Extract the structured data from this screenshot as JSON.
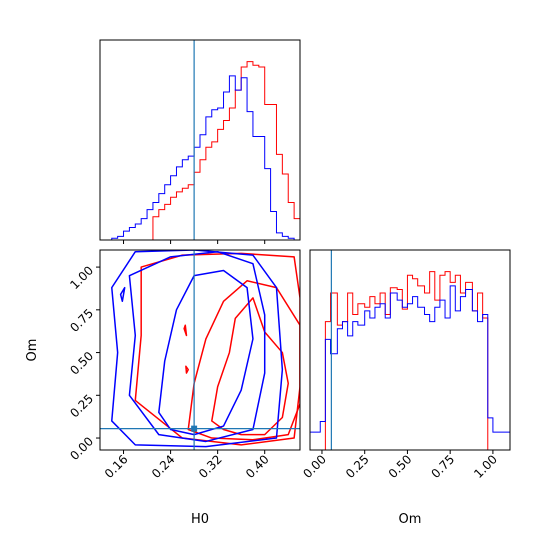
{
  "chart_data": {
    "type": "corner",
    "parameters": [
      "H0",
      "Om"
    ],
    "truth": {
      "H0": 0.28,
      "Om": 0.055
    },
    "colors": {
      "series_a": "#ff0000",
      "series_b": "#0000ff",
      "truth": "#1f77b4"
    },
    "series": [
      {
        "color": "#ff0000"
      },
      {
        "color": "#0000ff"
      }
    ],
    "panels": [
      {
        "id": "hist-H0",
        "type": "step-histogram",
        "xlim": [
          0.12,
          0.46
        ],
        "bins": [
          0.12,
          0.13,
          0.14,
          0.15,
          0.16,
          0.17,
          0.18,
          0.19,
          0.2,
          0.21,
          0.22,
          0.23,
          0.24,
          0.25,
          0.26,
          0.27,
          0.28,
          0.29,
          0.3,
          0.31,
          0.32,
          0.33,
          0.34,
          0.35,
          0.36,
          0.37,
          0.38,
          0.39,
          0.4,
          0.41,
          0.42,
          0.43,
          0.44,
          0.45,
          0.46
        ],
        "series_values": [
          [
            0,
            0,
            0,
            0,
            0,
            0,
            0,
            0,
            0,
            0.13,
            0.17,
            0.2,
            0.24,
            0.27,
            0.29,
            0.31,
            0.38,
            0.45,
            0.52,
            0.55,
            0.62,
            0.67,
            0.74,
            0.84,
            0.97,
            1.0,
            0.98,
            0.97,
            0.76,
            0.76,
            0.48,
            0.37,
            0.21,
            0.12
          ],
          [
            0,
            0,
            0.01,
            0.02,
            0.05,
            0.07,
            0.09,
            0.12,
            0.17,
            0.21,
            0.26,
            0.31,
            0.36,
            0.41,
            0.45,
            0.47,
            0.52,
            0.59,
            0.69,
            0.73,
            0.74,
            0.83,
            0.92,
            0.84,
            0.91,
            0.72,
            0.58,
            0.58,
            0.4,
            0.16,
            0.04,
            0.02,
            0.01,
            0
          ]
        ]
      },
      {
        "id": "hist-Om",
        "type": "step-histogram",
        "xlim": [
          -0.07,
          1.1
        ],
        "bins": [
          -0.07,
          -0.01,
          0.02,
          0.05,
          0.09,
          0.12,
          0.15,
          0.18,
          0.21,
          0.25,
          0.28,
          0.31,
          0.34,
          0.37,
          0.4,
          0.44,
          0.47,
          0.5,
          0.53,
          0.56,
          0.6,
          0.63,
          0.66,
          0.69,
          0.72,
          0.75,
          0.78,
          0.81,
          0.84,
          0.88,
          0.91,
          0.94,
          0.97,
          1.0,
          1.04,
          1.1
        ],
        "series_values": [
          [
            0,
            0,
            0.72,
            0.88,
            0.7,
            0.72,
            0.88,
            0.76,
            0.82,
            0.8,
            0.86,
            0.82,
            0.88,
            0.76,
            0.91,
            0.9,
            0.79,
            0.98,
            0.96,
            0.92,
            0.88,
            1.0,
            0.84,
            0.98,
            1.0,
            0.94,
            0.98,
            0.88,
            0.94,
            0.78,
            0.88,
            0.74,
            0,
            0,
            0
          ],
          [
            0.1,
            0.16,
            0.62,
            0.54,
            0.68,
            0.72,
            0.64,
            0.72,
            0.7,
            0.78,
            0.74,
            0.8,
            0.82,
            0.74,
            0.88,
            0.84,
            0.8,
            0.82,
            0.86,
            0.8,
            0.76,
            0.72,
            0.8,
            0.84,
            0.74,
            0.92,
            0.78,
            0.86,
            0.9,
            0.78,
            0.72,
            0.76,
            0.18,
            0.1,
            0.1
          ]
        ]
      },
      {
        "id": "contour-H0-Om",
        "type": "contour",
        "xlabel": "H0",
        "ylabel": "Om",
        "xlim": [
          0.12,
          0.46
        ],
        "ylim": [
          -0.07,
          1.1
        ],
        "xticks": [
          "0.16",
          "0.24",
          "0.32",
          "0.40"
        ],
        "yticks": [
          "0.00",
          "0.25",
          "0.50",
          "0.75",
          "1.00"
        ],
        "contours": [
          {
            "color": "#ff0000",
            "points": [
              [
                0.31,
                0.1
              ],
              [
                0.32,
                0.3
              ],
              [
                0.34,
                0.5
              ],
              [
                0.35,
                0.7
              ],
              [
                0.38,
                0.82
              ],
              [
                0.4,
                0.62
              ],
              [
                0.43,
                0.5
              ],
              [
                0.44,
                0.32
              ],
              [
                0.43,
                0.12
              ],
              [
                0.4,
                0.02
              ],
              [
                0.36,
                0.02
              ],
              [
                0.33,
                0.05
              ]
            ]
          },
          {
            "color": "#ff0000",
            "points": [
              [
                0.27,
                0.05
              ],
              [
                0.28,
                0.32
              ],
              [
                0.3,
                0.58
              ],
              [
                0.33,
                0.8
              ],
              [
                0.37,
                0.92
              ],
              [
                0.42,
                0.88
              ],
              [
                0.46,
                0.66
              ],
              [
                0.46,
                0.2
              ],
              [
                0.44,
                0.02
              ],
              [
                0.38,
                -0.01
              ],
              [
                0.31,
                0.0
              ]
            ]
          },
          {
            "color": "#ff0000",
            "points": [
              [
                0.18,
                0.22
              ],
              [
                0.19,
                0.6
              ],
              [
                0.19,
                1.0
              ],
              [
                0.26,
                1.07
              ],
              [
                0.36,
                1.08
              ],
              [
                0.45,
                1.06
              ],
              [
                0.46,
                0.82
              ],
              [
                0.46,
                0.3
              ],
              [
                0.45,
                0.0
              ],
              [
                0.36,
                -0.04
              ],
              [
                0.26,
                0.0
              ]
            ]
          },
          {
            "color": "#0000ff",
            "points": [
              [
                0.22,
                0.15
              ],
              [
                0.23,
                0.45
              ],
              [
                0.25,
                0.75
              ],
              [
                0.28,
                0.95
              ],
              [
                0.33,
                0.98
              ],
              [
                0.37,
                0.88
              ],
              [
                0.38,
                0.58
              ],
              [
                0.36,
                0.28
              ],
              [
                0.33,
                0.07
              ],
              [
                0.28,
                0.02
              ],
              [
                0.24,
                0.05
              ]
            ]
          },
          {
            "color": "#0000ff",
            "points": [
              [
                0.17,
                0.25
              ],
              [
                0.18,
                0.6
              ],
              [
                0.17,
                0.95
              ],
              [
                0.24,
                1.06
              ],
              [
                0.32,
                1.09
              ],
              [
                0.38,
                1.02
              ],
              [
                0.4,
                0.72
              ],
              [
                0.4,
                0.38
              ],
              [
                0.38,
                0.05
              ],
              [
                0.3,
                -0.02
              ],
              [
                0.22,
                0.02
              ]
            ]
          },
          {
            "color": "#0000ff",
            "points": [
              [
                0.14,
                0.1
              ],
              [
                0.15,
                0.5
              ],
              [
                0.14,
                0.88
              ],
              [
                0.18,
                1.09
              ],
              [
                0.28,
                1.1
              ],
              [
                0.38,
                1.07
              ],
              [
                0.42,
                0.88
              ],
              [
                0.43,
                0.4
              ],
              [
                0.42,
                0.0
              ],
              [
                0.3,
                -0.05
              ],
              [
                0.18,
                -0.04
              ]
            ]
          },
          {
            "color": "#ff0000",
            "points": [
              [
                0.263,
                0.64
              ],
              [
                0.267,
                0.6
              ],
              [
                0.265,
                0.66
              ]
            ]
          },
          {
            "color": "#ff0000",
            "points": [
              [
                0.267,
                0.38
              ],
              [
                0.27,
                0.4
              ],
              [
                0.266,
                0.42
              ]
            ]
          },
          {
            "color": "#0000ff",
            "points": [
              [
                0.155,
                0.84
              ],
              [
                0.162,
                0.88
              ],
              [
                0.158,
                0.8
              ]
            ]
          }
        ]
      }
    ],
    "bottom_right_xlabel": "Om",
    "bottom_right_xticks": [
      "0.00",
      "0.25",
      "0.50",
      "0.75",
      "1.00"
    ]
  }
}
